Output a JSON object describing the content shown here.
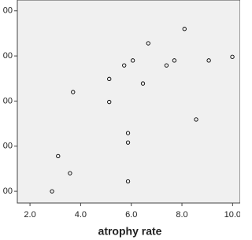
{
  "chart_data": {
    "type": "scatter",
    "xlabel": "atrophy rate",
    "series": [
      {
        "color": "#000000",
        "x": [
          2.87,
          3.11,
          3.58,
          3.7,
          5.13,
          5.13,
          5.72,
          5.87,
          5.87,
          5.87,
          6.06,
          6.46,
          6.67,
          7.39,
          7.7,
          8.1,
          8.56,
          9.06,
          9.99
        ],
        "values": [
          100,
          178,
          140,
          320,
          349,
          298,
          379,
          122,
          208,
          229,
          390,
          339,
          428,
          379,
          390,
          460,
          259,
          390,
          398
        ]
      }
    ],
    "xlim": [
      1.5,
      10.3
    ],
    "xticks": [
      {
        "value": 2,
        "label": "2.0"
      },
      {
        "value": 4,
        "label": "4.0"
      },
      {
        "value": 6,
        "label": "6.0"
      },
      {
        "value": 8,
        "label": "8.0"
      },
      {
        "value": 10,
        "label": "10.0"
      }
    ],
    "ylim": [
      74,
      524
    ],
    "yticks": [
      {
        "value": 100,
        "label": "00"
      },
      {
        "value": 200,
        "label": "00"
      },
      {
        "value": 300,
        "label": "00"
      },
      {
        "value": 400,
        "label": "00"
      },
      {
        "value": 500,
        "label": "00"
      }
    ],
    "background": "#f0f0f0"
  }
}
